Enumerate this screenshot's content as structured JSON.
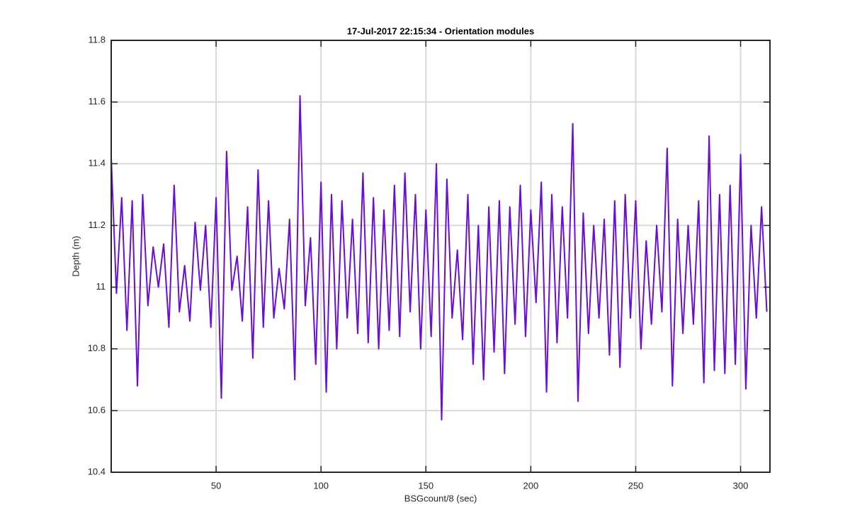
{
  "chart_data": {
    "type": "line",
    "title": "17-Jul-2017 22:15:34 - Orientation modules",
    "x_label": "BSGcount/8 (sec)",
    "y_label": "Depth (m)",
    "x": [
      0,
      2.5,
      5,
      7.5,
      10,
      12.5,
      15,
      17.5,
      20,
      22.5,
      25,
      27.5,
      30,
      32.5,
      35,
      37.5,
      40,
      42.5,
      45,
      47.5,
      50,
      52.5,
      55,
      57.5,
      60,
      62.5,
      65,
      67.5,
      70,
      72.5,
      75,
      77.5,
      80,
      82.5,
      85,
      87.5,
      90,
      92.5,
      95,
      97.5,
      100,
      102.5,
      105,
      107.5,
      110,
      112.5,
      115,
      117.5,
      120,
      122.5,
      125,
      127.5,
      130,
      132.5,
      135,
      137.5,
      140,
      142.5,
      145,
      147.5,
      150,
      152.5,
      155,
      157.5,
      160,
      162.5,
      165,
      167.5,
      170,
      172.5,
      175,
      177.5,
      180,
      182.5,
      185,
      187.5,
      190,
      192.5,
      195,
      197.5,
      200,
      202.5,
      205,
      207.5,
      210,
      212.5,
      215,
      217.5,
      220,
      222.5,
      225,
      227.5,
      230,
      232.5,
      235,
      237.5,
      240,
      242.5,
      245,
      247.5,
      250,
      252.5,
      255,
      257.5,
      260,
      262.5,
      265,
      267.5,
      270,
      272.5,
      275,
      277.5,
      280,
      282.5,
      285,
      287.5,
      290,
      292.5,
      295,
      297.5,
      300,
      302.5,
      305,
      307.5,
      310,
      312.5
    ],
    "series": [
      {
        "name": "Depth",
        "color": "#6a0dd6",
        "values": [
          11.42,
          10.98,
          11.29,
          10.86,
          11.28,
          10.68,
          11.3,
          10.94,
          11.13,
          11.0,
          11.14,
          10.87,
          11.33,
          10.92,
          11.07,
          10.89,
          11.21,
          10.99,
          11.2,
          10.87,
          11.29,
          10.64,
          11.44,
          10.99,
          11.1,
          10.89,
          11.26,
          10.77,
          11.38,
          10.87,
          11.28,
          10.9,
          11.06,
          10.93,
          11.22,
          10.7,
          11.62,
          10.94,
          11.16,
          10.75,
          11.34,
          10.66,
          11.3,
          10.8,
          11.28,
          10.9,
          11.22,
          10.85,
          11.37,
          10.82,
          11.29,
          10.8,
          11.25,
          10.86,
          11.33,
          10.84,
          11.37,
          10.92,
          11.3,
          10.8,
          11.25,
          10.84,
          11.4,
          10.57,
          11.35,
          10.9,
          11.12,
          10.83,
          11.3,
          10.75,
          11.2,
          10.7,
          11.26,
          10.79,
          11.28,
          10.72,
          11.26,
          10.88,
          11.33,
          10.84,
          11.25,
          10.95,
          11.34,
          10.66,
          11.3,
          10.82,
          11.26,
          10.9,
          11.53,
          10.63,
          11.24,
          10.85,
          11.2,
          10.9,
          11.22,
          10.78,
          11.28,
          10.74,
          11.3,
          10.9,
          11.28,
          10.8,
          11.15,
          10.88,
          11.2,
          10.92,
          11.45,
          10.68,
          11.22,
          10.85,
          11.2,
          10.88,
          11.28,
          10.69,
          11.49,
          10.73,
          11.3,
          10.72,
          11.33,
          10.75,
          11.43,
          10.67,
          11.2,
          10.9,
          11.26,
          10.92
        ]
      }
    ],
    "xlim": [
      0,
      314
    ],
    "xticks": [
      50,
      100,
      150,
      200,
      250,
      300
    ],
    "ylim": [
      10.4,
      11.8
    ],
    "yticks": [
      10.4,
      10.6,
      10.8,
      11,
      11.2,
      11.4,
      11.6,
      11.8
    ],
    "grid": true
  }
}
